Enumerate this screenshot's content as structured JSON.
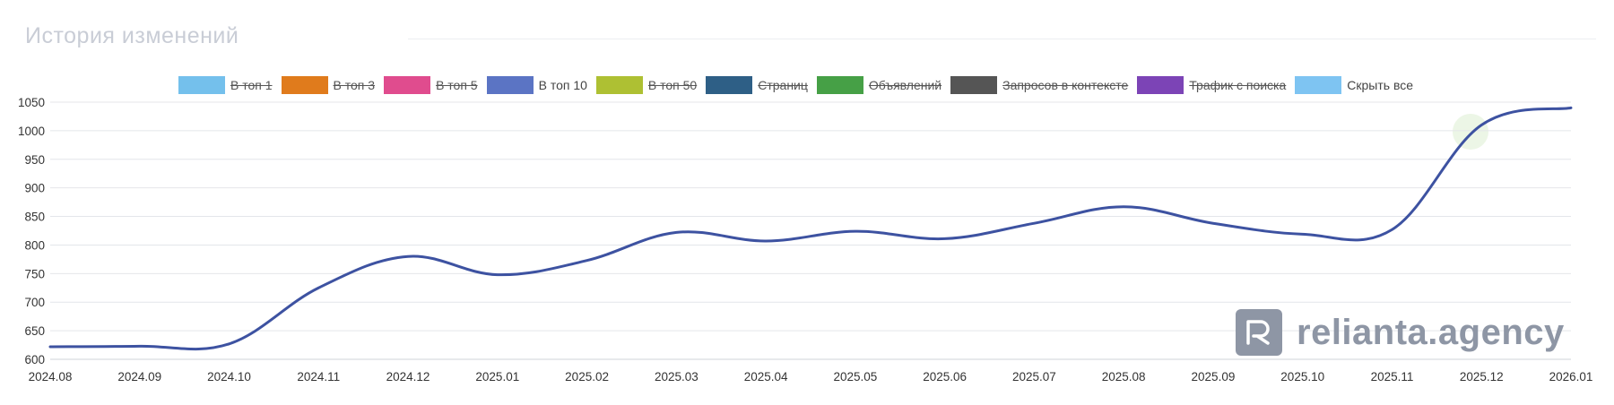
{
  "title": "История изменений",
  "legend": [
    {
      "label": "В топ 1",
      "color": "#74c0ec",
      "visible": false
    },
    {
      "label": "В топ 3",
      "color": "#e07b1c",
      "visible": false
    },
    {
      "label": "В топ 5",
      "color": "#e04c8e",
      "visible": false
    },
    {
      "label": "В топ 10",
      "color": "#5b74c4",
      "visible": true
    },
    {
      "label": "В топ 50",
      "color": "#aec033",
      "visible": false
    },
    {
      "label": "Страниц",
      "color": "#2e5f86",
      "visible": false
    },
    {
      "label": "Объявлений",
      "color": "#46a046",
      "visible": false
    },
    {
      "label": "Запросов в контексте",
      "color": "#555555",
      "visible": false
    },
    {
      "label": "Трафик с поиска",
      "color": "#7c44b6",
      "visible": false
    },
    {
      "label": "Скрыть все",
      "color": "#7ec4f2",
      "visible": true
    }
  ],
  "chart_data": {
    "type": "line",
    "x": [
      "2024.08",
      "2024.09",
      "2024.10",
      "2024.11",
      "2024.12",
      "2025.01",
      "2025.02",
      "2025.03",
      "2025.04",
      "2025.05",
      "2025.06",
      "2025.07",
      "2025.08",
      "2025.09",
      "2025.10",
      "2025.11",
      "2025.12",
      "2026.01"
    ],
    "series": [
      {
        "name": "В топ 10",
        "color": "#3d52a1",
        "values": [
          622,
          623,
          627,
          725,
          780,
          748,
          773,
          822,
          807,
          824,
          811,
          838,
          867,
          838,
          819,
          827,
          1010,
          1040
        ]
      }
    ],
    "y_ticks": [
      "600",
      "650",
      "700",
      "750",
      "800",
      "850",
      "900",
      "950",
      "1000",
      "1050"
    ],
    "y_tick_labels": [
      "600",
      "650",
      "700",
      "750",
      "800",
      "850",
      "900",
      "950",
      "1000",
      "1050"
    ],
    "ylim": [
      600,
      1050
    ],
    "grid": true,
    "legend_position": "top"
  },
  "watermark": {
    "text": "relianta.agency"
  }
}
